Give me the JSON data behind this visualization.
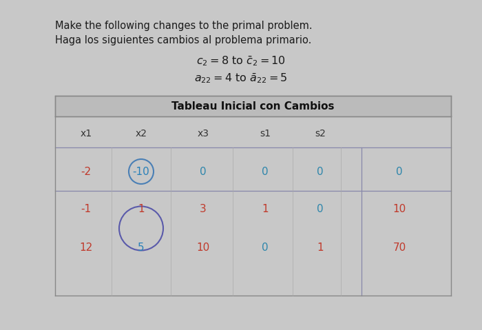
{
  "title_en": "Make the following changes to the primal problem.",
  "title_es": "Haga los siguientes cambios al problema primario.",
  "change1": "$c_2 = 8$ to $\\bar{c}_2 = 10$",
  "change2": "$a_{22} = 4$ to $\\bar{a}_{22} = 5$",
  "table_title": "Tableau Inicial con Cambios",
  "col_headers": [
    "x1",
    "x2",
    "x3",
    "s1",
    "s2",
    ""
  ],
  "row0": [
    "-2",
    "-10",
    "0",
    "0",
    "0",
    "0"
  ],
  "row1": [
    "-1",
    "1",
    "3",
    "1",
    "0",
    "10"
  ],
  "row2": [
    "12",
    "5",
    "10",
    "0",
    "1",
    "70"
  ],
  "row0_colors": [
    "#c0392b",
    "#2980b9",
    "#2e86ab",
    "#2e86ab",
    "#2e86ab",
    "#2e86ab"
  ],
  "row1_colors": [
    "#c0392b",
    "#c0392b",
    "#c0392b",
    "#c0392b",
    "#2e86ab",
    "#c0392b"
  ],
  "row2_colors": [
    "#c0392b",
    "#2980b9",
    "#c0392b",
    "#2e86ab",
    "#c0392b",
    "#c0392b"
  ],
  "header_color": "#2e4057",
  "bg_color": "#c8c8c8",
  "table_title_bg": "#b8b8b8",
  "title_color": "#1a1a1a",
  "circle_color_row0": "#4a7fb5",
  "circle_color_row12": "#5a5aaa",
  "sep_line_color": "#7a7a9a",
  "grid_color": "#9a9aaa"
}
